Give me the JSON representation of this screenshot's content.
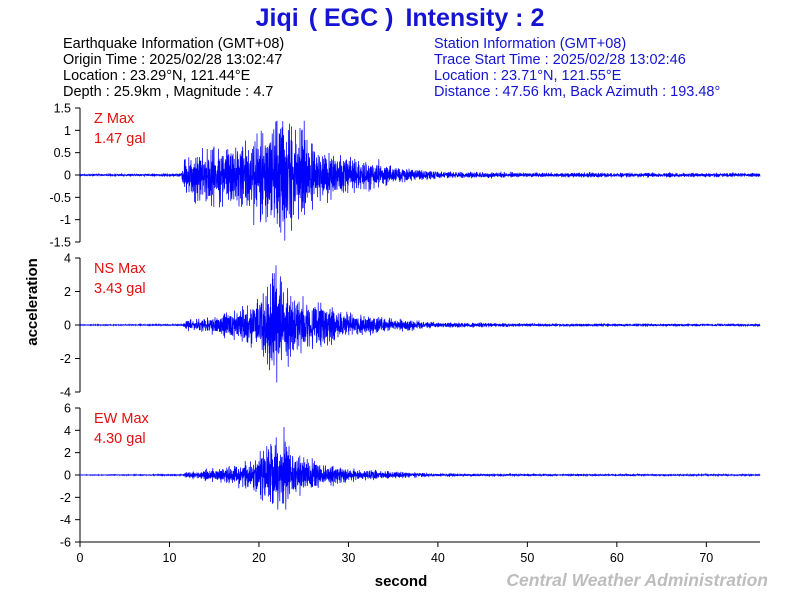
{
  "header": {
    "station_name": "Jiqi",
    "station_code": "( EGC )",
    "intensity_label": "Intensity : 2",
    "eq_info": {
      "heading": "Earthquake Information  (GMT+08)",
      "origin_time": "Origin Time : 2025/02/28 13:02:47",
      "location": "Location : 23.29°N, 121.44°E",
      "depth_magnitude": "Depth : 25.9km , Magnitude : 4.7"
    },
    "station_info": {
      "heading": "Station Information  (GMT+08)",
      "trace_start": "Trace Start Time : 2025/02/28 13:02:46",
      "location": "Location : 23.71°N, 121.55°E",
      "distance_azimuth": "Distance : 47.56 km, Back Azimuth : 193.48°"
    }
  },
  "footer": {
    "agency": "Central Weather Administration"
  },
  "colors": {
    "title": "#1414d2",
    "trace": "#0000ff",
    "max_label": "#e01010",
    "agency": "#bdbdbd"
  },
  "chart_data": {
    "type": "line",
    "xlabel": "second",
    "ylabel": "acceleration",
    "xlim": [
      0,
      76
    ],
    "xticks": [
      "0",
      "10",
      "20",
      "30",
      "40",
      "50",
      "60",
      "70"
    ],
    "panels": [
      {
        "name": "Z",
        "max_label": "Z Max",
        "max_value": "1.47 gal",
        "ylim": [
          -1.5,
          1.5
        ],
        "yticks": [
          "1.5",
          "1",
          "0.5",
          "0",
          "-0.5",
          "-1",
          "-1.5"
        ],
        "ytick_values": [
          1.5,
          1,
          0.5,
          0,
          -0.5,
          -1,
          -1.5
        ],
        "envelope": [
          [
            0,
            0.02
          ],
          [
            11.3,
            0.03
          ],
          [
            11.8,
            0.45
          ],
          [
            13,
            0.55
          ],
          [
            16,
            0.6
          ],
          [
            20,
            0.8
          ],
          [
            22.5,
            1.25
          ],
          [
            24,
            1.0
          ],
          [
            27,
            0.55
          ],
          [
            30,
            0.4
          ],
          [
            35,
            0.18
          ],
          [
            40,
            0.08
          ],
          [
            50,
            0.05
          ],
          [
            76,
            0.04
          ]
        ],
        "peaks": [
          [
            21.9,
            1.2
          ],
          [
            22.9,
            -1.47
          ],
          [
            23.4,
            1.15
          ],
          [
            20.2,
            -1.0
          ]
        ]
      },
      {
        "name": "NS",
        "max_label": "NS Max",
        "max_value": "3.43 gal",
        "ylim": [
          -4,
          4
        ],
        "yticks": [
          "4",
          "2",
          "0",
          "-2",
          "-4"
        ],
        "ytick_values": [
          4,
          2,
          0,
          -2,
          -4
        ],
        "envelope": [
          [
            0,
            0.02
          ],
          [
            11.5,
            0.04
          ],
          [
            12,
            0.3
          ],
          [
            15,
            0.5
          ],
          [
            19,
            1.0
          ],
          [
            21,
            2.2
          ],
          [
            22,
            2.9
          ],
          [
            23.5,
            1.8
          ],
          [
            26,
            1.3
          ],
          [
            30,
            0.6
          ],
          [
            35,
            0.35
          ],
          [
            40,
            0.15
          ],
          [
            50,
            0.08
          ],
          [
            76,
            0.06
          ]
        ],
        "peaks": [
          [
            21.7,
            3.1
          ],
          [
            22.0,
            -3.43
          ],
          [
            22.4,
            2.9
          ],
          [
            21.2,
            -2.7
          ]
        ]
      },
      {
        "name": "EW",
        "max_label": "EW Max",
        "max_value": "4.30 gal",
        "ylim": [
          -6,
          6
        ],
        "yticks": [
          "6",
          "4",
          "2",
          "0",
          "-2",
          "-4",
          "-6"
        ],
        "ytick_values": [
          6,
          4,
          2,
          0,
          -2,
          -4,
          -6
        ],
        "envelope": [
          [
            0,
            0.02
          ],
          [
            11.5,
            0.05
          ],
          [
            12,
            0.3
          ],
          [
            16,
            0.55
          ],
          [
            19,
            1.2
          ],
          [
            21,
            2.4
          ],
          [
            23,
            2.6
          ],
          [
            24.5,
            1.5
          ],
          [
            27,
            1.0
          ],
          [
            30,
            0.5
          ],
          [
            35,
            0.3
          ],
          [
            40,
            0.12
          ],
          [
            50,
            0.08
          ],
          [
            76,
            0.06
          ]
        ],
        "peaks": [
          [
            22.8,
            4.3
          ],
          [
            23.0,
            -3.1
          ],
          [
            22.1,
            -3.1
          ],
          [
            21.4,
            2.6
          ]
        ]
      }
    ]
  }
}
